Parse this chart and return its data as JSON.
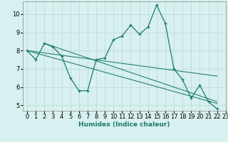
{
  "xlabel": "Humidex (Indice chaleur)",
  "x_values": [
    0,
    1,
    2,
    3,
    4,
    5,
    6,
    7,
    8,
    9,
    10,
    11,
    12,
    13,
    14,
    15,
    16,
    17,
    18,
    19,
    20,
    21,
    22,
    23
  ],
  "main_line": [
    8.0,
    7.5,
    8.4,
    8.2,
    7.7,
    6.5,
    5.8,
    5.8,
    7.5,
    7.6,
    8.6,
    8.8,
    9.4,
    8.9,
    9.3,
    10.5,
    9.5,
    7.0,
    6.4,
    5.4,
    6.1,
    5.2,
    4.8,
    null
  ],
  "trend_lines": [
    {
      "x": [
        0,
        22
      ],
      "y": [
        8.0,
        5.1
      ]
    },
    {
      "x": [
        0,
        22
      ],
      "y": [
        8.0,
        6.6
      ]
    },
    {
      "x": [
        2,
        22
      ],
      "y": [
        8.4,
        5.2
      ]
    }
  ],
  "ylim": [
    4.7,
    10.7
  ],
  "xlim": [
    -0.5,
    23.0
  ],
  "yticks": [
    5,
    6,
    7,
    8,
    9,
    10
  ],
  "xticks": [
    0,
    1,
    2,
    3,
    4,
    5,
    6,
    7,
    8,
    9,
    10,
    11,
    12,
    13,
    14,
    15,
    16,
    17,
    18,
    19,
    20,
    21,
    22,
    23
  ],
  "line_color": "#1a7a6e",
  "bg_color": "#d8f0ef",
  "grid_color": "#b8d8d5",
  "label_fontsize": 6.5,
  "tick_fontsize": 6
}
